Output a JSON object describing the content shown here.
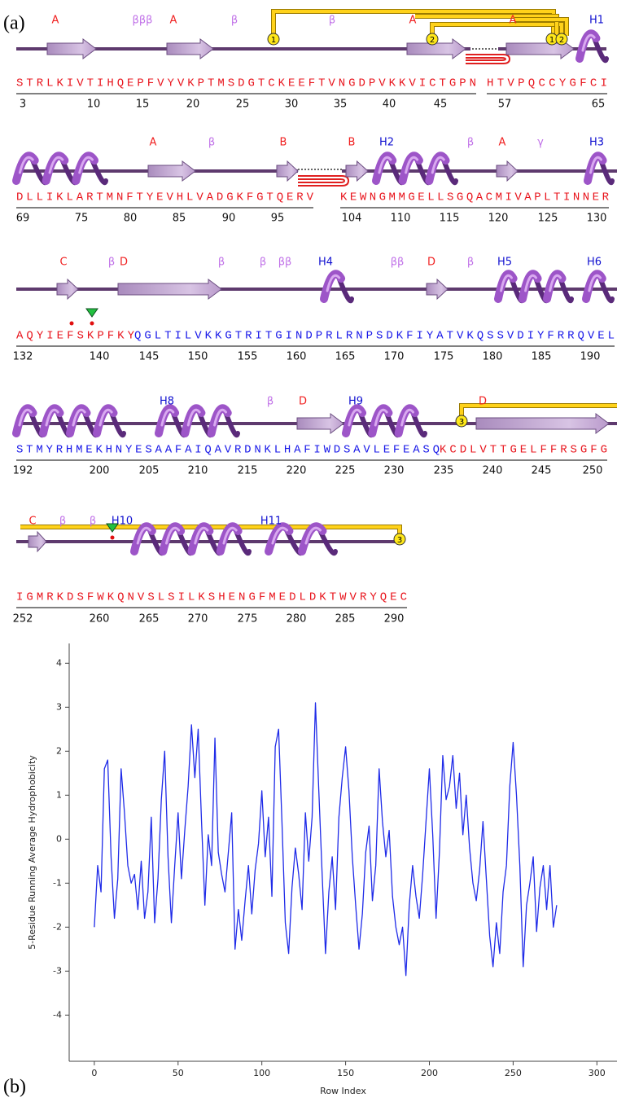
{
  "figure_labels": {
    "a": "(a)",
    "b": "(b)"
  },
  "panel_a": {
    "rows": [
      {
        "segments": [
          {
            "text": "STRLKIVTIHQEPFVYVKPTMSDGTCKEEFTVNGDPVKKVICTGPN",
            "color": "#e8141c"
          },
          {
            "text": "HTVPQCCYGFCI",
            "color": "#e8141c"
          }
        ],
        "numbers": [
          3,
          10,
          15,
          20,
          25,
          30,
          35,
          40,
          45,
          57,
          65
        ],
        "labels": [
          {
            "text": "A",
            "color": "#f02020"
          },
          {
            "text": "βββ",
            "color": "#c070e8"
          },
          {
            "text": "A",
            "color": "#f02020"
          },
          {
            "text": "β",
            "color": "#c070e8"
          },
          {
            "text": "β",
            "color": "#c070e8"
          },
          {
            "text": "A",
            "color": "#f02020"
          },
          {
            "text": "A",
            "color": "#f02020"
          },
          {
            "text": "H1",
            "color": "#1010d0"
          }
        ],
        "bonds": [
          "1",
          "2",
          "1",
          "2"
        ]
      },
      {
        "segments": [
          {
            "text": "DLLIKLARTMNFTYEVHLVADGKFGTQERV",
            "color": "#e8141c"
          },
          {
            "text": "KEWNGMMGELLSGQACMIVAPLTINNER",
            "color": "#e8141c"
          }
        ],
        "numbers": [
          69,
          75,
          80,
          85,
          90,
          95,
          104,
          110,
          115,
          120,
          125,
          130
        ],
        "labels": [
          {
            "text": "A",
            "color": "#f02020"
          },
          {
            "text": "β",
            "color": "#c070e8"
          },
          {
            "text": "B",
            "color": "#f02020"
          },
          {
            "text": "B",
            "color": "#f02020"
          },
          {
            "text": "H2",
            "color": "#1010d0"
          },
          {
            "text": "β",
            "color": "#c070e8"
          },
          {
            "text": "A",
            "color": "#f02020"
          },
          {
            "text": "γ",
            "color": "#c070e8"
          },
          {
            "text": "H3",
            "color": "#1010d0"
          }
        ],
        "bonds": []
      },
      {
        "segments": [
          {
            "text": "AQYIEFSKPFKY",
            "color": "#e8141c"
          },
          {
            "text": "QGLTILVKKGTRITGINDPRLRNPSDKFIYATVKQSSVDIYFRRQVEL",
            "color": "#1818e8"
          }
        ],
        "numbers": [
          132,
          140,
          145,
          150,
          155,
          160,
          165,
          170,
          175,
          180,
          185,
          190
        ],
        "labels": [
          {
            "text": "C",
            "color": "#f02020"
          },
          {
            "text": "β",
            "color": "#c070e8"
          },
          {
            "text": "D",
            "color": "#f02020"
          },
          {
            "text": "β",
            "color": "#c070e8"
          },
          {
            "text": "β",
            "color": "#c070e8"
          },
          {
            "text": "ββ",
            "color": "#c070e8"
          },
          {
            "text": "H4",
            "color": "#1010d0"
          },
          {
            "text": "ββ",
            "color": "#c070e8"
          },
          {
            "text": "D",
            "color": "#f02020"
          },
          {
            "text": "β",
            "color": "#c070e8"
          },
          {
            "text": "H5",
            "color": "#1010d0"
          },
          {
            "text": "H6",
            "color": "#1010d0"
          }
        ],
        "bonds": []
      },
      {
        "segments": [
          {
            "text": "STMYRHMEKHNYESAAFAIQAVRDNKLHAFIWDSAVLEFEASQ",
            "color": "#1818e8"
          },
          {
            "text": "KCDLVTTGELFFRSGFG",
            "color": "#e8141c"
          }
        ],
        "numbers": [
          192,
          200,
          205,
          210,
          215,
          220,
          225,
          230,
          235,
          240,
          245,
          250
        ],
        "labels": [
          {
            "text": "H8",
            "color": "#1010d0"
          },
          {
            "text": "β",
            "color": "#c070e8"
          },
          {
            "text": "D",
            "color": "#f02020"
          },
          {
            "text": "H9",
            "color": "#1010d0"
          },
          {
            "text": "D",
            "color": "#f02020"
          }
        ],
        "bonds": [
          "3"
        ]
      },
      {
        "segments": [
          {
            "text": "IGMRKDSFWKQNVSLSILKSHENGFMEDLDKTWVRYQEC",
            "color": "#e8141c"
          }
        ],
        "numbers": [
          252,
          260,
          265,
          270,
          275,
          280,
          285,
          290
        ],
        "labels": [
          {
            "text": "C",
            "color": "#f02020"
          },
          {
            "text": "β",
            "color": "#c070e8"
          },
          {
            "text": "β",
            "color": "#c070e8"
          },
          {
            "text": "H10",
            "color": "#1010d0"
          },
          {
            "text": "H11",
            "color": "#1010d0"
          }
        ],
        "bonds": [
          "3"
        ]
      }
    ]
  },
  "chart_data": {
    "type": "line",
    "ylabel": "5-Residue Running Average Hydrophobicity",
    "xlabel": "Row Index",
    "color": "#1f2be8",
    "x": [
      0,
      2,
      4,
      6,
      8,
      10,
      12,
      14,
      16,
      18,
      20,
      22,
      24,
      26,
      28,
      30,
      32,
      34,
      36,
      38,
      40,
      42,
      44,
      46,
      48,
      50,
      52,
      54,
      56,
      58,
      60,
      62,
      64,
      66,
      68,
      70,
      72,
      74,
      76,
      78,
      80,
      82,
      84,
      86,
      88,
      90,
      92,
      94,
      96,
      98,
      100,
      102,
      104,
      106,
      108,
      110,
      112,
      114,
      116,
      118,
      120,
      122,
      124,
      126,
      128,
      130,
      132,
      134,
      136,
      138,
      140,
      142,
      144,
      146,
      148,
      150,
      152,
      154,
      156,
      158,
      160,
      162,
      164,
      166,
      168,
      170,
      172,
      174,
      176,
      178,
      180,
      182,
      184,
      186,
      188,
      190,
      192,
      194,
      196,
      198,
      200,
      202,
      204,
      206,
      208,
      210,
      212,
      214,
      216,
      218,
      220,
      222,
      224,
      226,
      228,
      230,
      232,
      234,
      236,
      238,
      240,
      242,
      244,
      246,
      248,
      250,
      252,
      254,
      256,
      258,
      260,
      262,
      264,
      266,
      268,
      270,
      272,
      274,
      276
    ],
    "values": [
      -2.0,
      -0.6,
      -1.2,
      1.6,
      1.8,
      -0.4,
      -1.8,
      -0.9,
      1.6,
      0.6,
      -0.6,
      -1.0,
      -0.8,
      -1.6,
      -0.5,
      -1.8,
      -1.2,
      0.5,
      -1.9,
      -0.9,
      0.9,
      2.0,
      -0.4,
      -1.9,
      -0.6,
      0.6,
      -0.9,
      0.2,
      1.2,
      2.6,
      1.4,
      2.5,
      0.4,
      -1.5,
      0.1,
      -0.6,
      2.3,
      -0.3,
      -0.8,
      -1.2,
      -0.3,
      0.6,
      -2.5,
      -1.6,
      -2.3,
      -1.4,
      -0.6,
      -1.7,
      -0.7,
      -0.1,
      1.1,
      -0.4,
      0.5,
      -1.3,
      2.1,
      2.5,
      0.4,
      -1.9,
      -2.6,
      -1.1,
      -0.2,
      -0.8,
      -1.6,
      0.6,
      -0.5,
      0.5,
      3.1,
      1.1,
      -0.8,
      -2.6,
      -1.2,
      -0.4,
      -1.6,
      0.5,
      1.4,
      2.1,
      1.1,
      -0.4,
      -1.5,
      -2.5,
      -1.7,
      -0.3,
      0.3,
      -1.4,
      -0.6,
      1.6,
      0.4,
      -0.4,
      0.2,
      -1.3,
      -2.0,
      -2.4,
      -2.0,
      -3.1,
      -1.5,
      -0.6,
      -1.3,
      -1.8,
      -0.8,
      0.4,
      1.6,
      0.1,
      -1.8,
      -0.3,
      1.9,
      0.9,
      1.2,
      1.9,
      0.7,
      1.5,
      0.1,
      1.0,
      -0.2,
      -1.0,
      -1.4,
      -0.7,
      0.4,
      -0.9,
      -2.2,
      -2.9,
      -1.9,
      -2.6,
      -1.2,
      -0.6,
      1.2,
      2.2,
      1.0,
      -0.6,
      -2.9,
      -1.5,
      -1.0,
      -0.4,
      -2.1,
      -1.1,
      -0.6,
      -1.6,
      -0.6,
      -2.0,
      -1.5
    ],
    "xlim": [
      -15,
      312
    ],
    "ylim": [
      -5.05,
      4.45
    ],
    "xticks": [
      0,
      50,
      100,
      150,
      200,
      250,
      300
    ],
    "yticks": [
      -4,
      -3,
      -2,
      -1,
      0,
      1,
      2,
      3,
      4
    ]
  }
}
